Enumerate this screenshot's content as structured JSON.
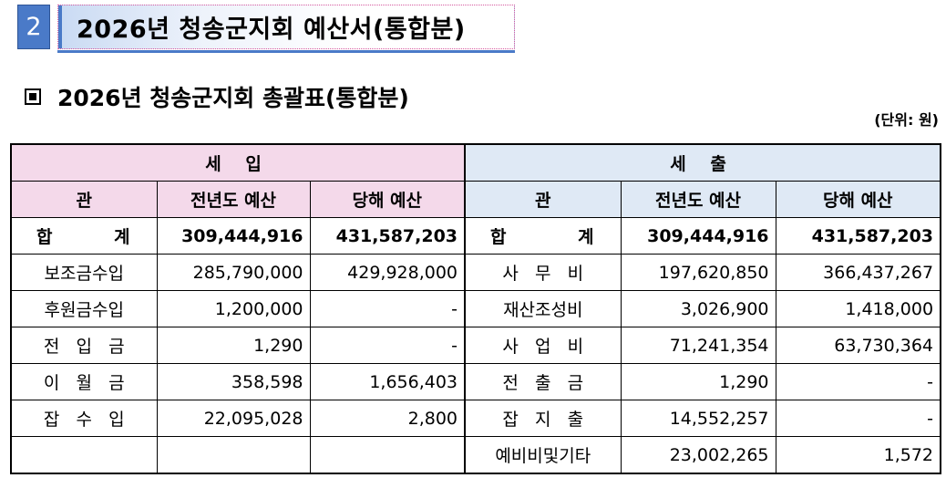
{
  "header": {
    "number": "2",
    "title": "2026년  청송군지회  예산서(통합분)"
  },
  "section": {
    "title": "2026년  청송군지회  총괄표(통합분)"
  },
  "unit": "(단위:  원)",
  "table": {
    "income_header": "세    입",
    "expense_header": "세    출",
    "columns": {
      "item": "관",
      "prev": "전년도  예산",
      "curr": "당해  예산"
    },
    "total": {
      "label_a": "합",
      "label_b": "계",
      "income_prev": "309,444,916",
      "income_curr": "431,587,203",
      "expense_prev": "309,444,916",
      "expense_curr": "431,587,203"
    },
    "rows": [
      {
        "in_item": "보조금수입",
        "in_prev": "285,790,000",
        "in_curr": "429,928,000",
        "out_item": "사   무   비",
        "out_prev": "197,620,850",
        "out_curr": "366,437,267"
      },
      {
        "in_item": "후원금수입",
        "in_prev": "1,200,000",
        "in_curr": "-",
        "out_item": "재산조성비",
        "out_prev": "3,026,900",
        "out_curr": "1,418,000"
      },
      {
        "in_item": "전   입   금",
        "in_prev": "1,290",
        "in_curr": "-",
        "out_item": "사   업   비",
        "out_prev": "71,241,354",
        "out_curr": "63,730,364"
      },
      {
        "in_item": "이   월   금",
        "in_prev": "358,598",
        "in_curr": "1,656,403",
        "out_item": "전   출   금",
        "out_prev": "1,290",
        "out_curr": "-"
      },
      {
        "in_item": "잡   수   입",
        "in_prev": "22,095,028",
        "in_curr": "2,800",
        "out_item": "잡   지   출",
        "out_prev": "14,552,257",
        "out_curr": "-"
      },
      {
        "in_item": "",
        "in_prev": "",
        "in_curr": "",
        "out_item": "예비비및기타",
        "out_prev": "23,002,265",
        "out_curr": "1,572"
      }
    ]
  }
}
